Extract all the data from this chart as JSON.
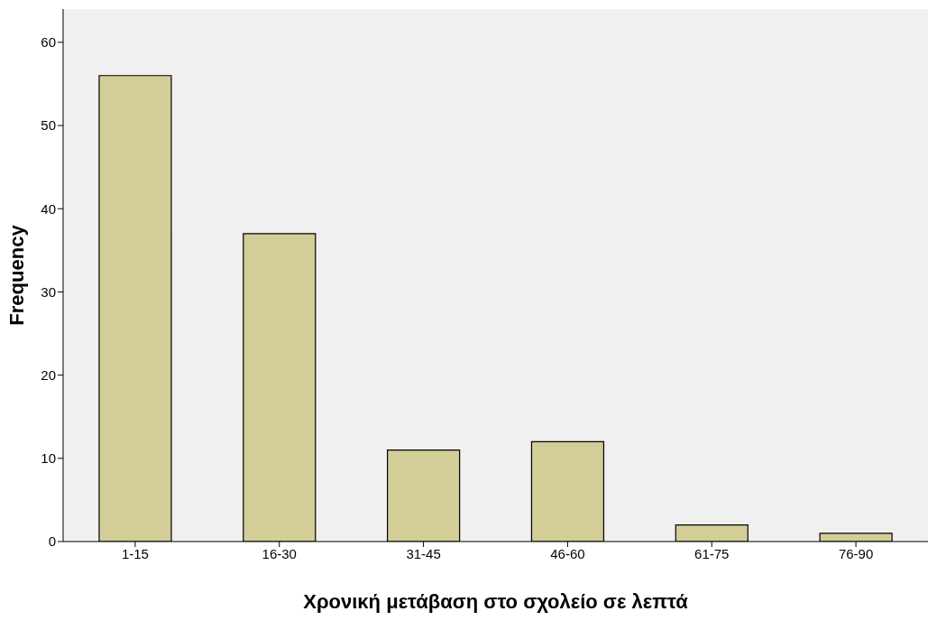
{
  "chart_data": {
    "type": "bar",
    "xlabel": "Χρονική μετάβαση στο σχολείο σε λεπτά",
    "ylabel": "Frequency",
    "categories": [
      "1-15",
      "16-30",
      "31-45",
      "46-60",
      "61-75",
      "76-90"
    ],
    "values": [
      56,
      37,
      11,
      12,
      2,
      1
    ],
    "color": "#d3ce97",
    "ylim": [
      0,
      64
    ],
    "yticks": [
      0,
      10,
      20,
      30,
      40,
      50,
      60
    ],
    "grid": false
  }
}
